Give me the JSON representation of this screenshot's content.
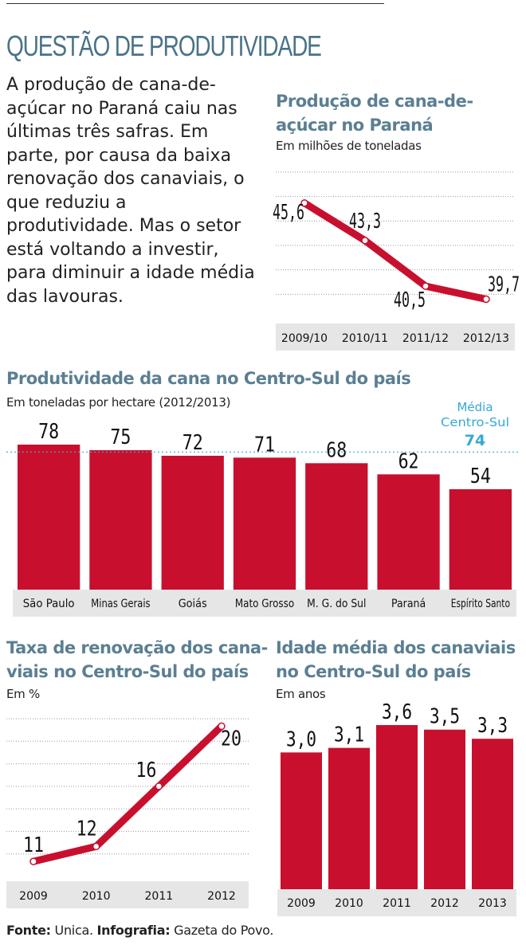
{
  "main_title": "QUESTÃO DE PRODUTIVIDADE",
  "intro": "A produção de cana-de-açúcar no Paraná caiu nas últimas três safras. Em parte, por causa da baixa renovação dos canaviais, o que reduziu a produtividade. Mas o setor está voltando a investir, para diminuir a idade média das lavouras.",
  "footer": {
    "source_label": "Fonte:",
    "source_value": " Unica. ",
    "infographic_label": "Infografia:",
    "infographic_value": " Gazeta do Povo."
  },
  "colors": {
    "accent": "#c8102e",
    "title": "#5b7f92",
    "avg": "#35a9d6",
    "axis_bg": "#e6e6e6"
  },
  "chart_data": [
    {
      "id": "producao",
      "type": "line",
      "title": "Produção de cana-de-açúcar no Paraná",
      "subtitle": "Em milhões de toneladas",
      "categories": [
        "2009/10",
        "2010/11",
        "2011/12",
        "2012/13"
      ],
      "values": [
        45.6,
        43.3,
        40.5,
        39.7
      ],
      "labels": [
        "45,6",
        "43,3",
        "40,5",
        "39,7"
      ],
      "ylim": [
        38.5,
        47.5
      ]
    },
    {
      "id": "produtividade",
      "type": "bar",
      "title": "Produtividade da cana no Centro-Sul do país",
      "subtitle": "Em toneladas por hectare (2012/2013)",
      "categories": [
        "São Paulo",
        "Minas Gerais",
        "Goiás",
        "Mato Grosso",
        "M. G. do Sul",
        "Paraná",
        "Espírito Santo"
      ],
      "values": [
        78,
        75,
        72,
        71,
        68,
        62,
        54
      ],
      "labels": [
        "78",
        "75",
        "72",
        "71",
        "68",
        "62",
        "54"
      ],
      "ylim": [
        0,
        85
      ],
      "average": {
        "label_line1": "Média",
        "label_line2": "Centro-Sul",
        "value": 74,
        "value_label": "74"
      }
    },
    {
      "id": "renovacao",
      "type": "line",
      "title": "Taxa de renovação dos cana-viais no Centro-Sul do país",
      "title_lines": [
        "Taxa de renovação dos cana-",
        "viais no Centro-Sul do país"
      ],
      "subtitle": "Em %",
      "categories": [
        "2009",
        "2010",
        "2011",
        "2012"
      ],
      "values": [
        11,
        12,
        16,
        20
      ],
      "labels": [
        "11",
        "12",
        "16",
        "20"
      ],
      "ylim": [
        10,
        20.5
      ]
    },
    {
      "id": "idade",
      "type": "bar",
      "title": "Idade média dos canaviais no Centro-Sul do país",
      "title_lines": [
        "Idade média dos canaviais",
        "no Centro-Sul do país"
      ],
      "subtitle": "Em anos",
      "categories": [
        "2009",
        "2010",
        "2011",
        "2012",
        "2013"
      ],
      "values": [
        3.0,
        3.1,
        3.6,
        3.5,
        3.3
      ],
      "labels": [
        "3,0",
        "3,1",
        "3,6",
        "3,5",
        "3,3"
      ],
      "ylim": [
        0,
        4.1
      ]
    }
  ]
}
